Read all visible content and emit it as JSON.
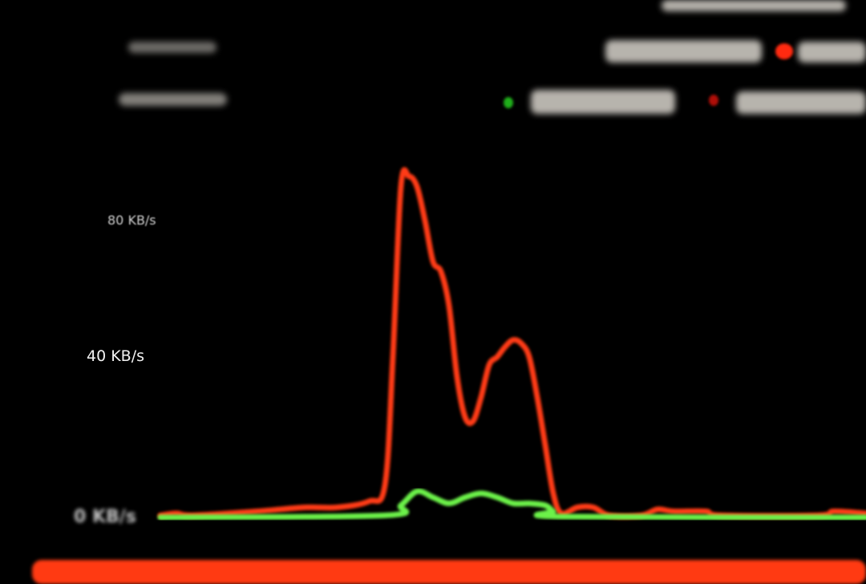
{
  "legend": {
    "colors": {
      "download": "#22c41e",
      "upload": "#e8160c"
    }
  },
  "chart_data": {
    "type": "line",
    "title": "",
    "xlabel": "",
    "ylabel": "",
    "y_tick_labels": [
      "0 KB/s",
      "40 KB/s",
      "80 KB/s"
    ],
    "y_ticks": [
      0,
      40,
      80
    ],
    "ylim": [
      0,
      95
    ],
    "xlim": [
      0,
      88
    ],
    "grid": false,
    "series": [
      {
        "color": "#ff3a12",
        "points": [
          [
            0,
            0.5
          ],
          [
            2,
            1
          ],
          [
            4,
            0.5
          ],
          [
            12,
            1.5
          ],
          [
            18,
            2.5
          ],
          [
            22,
            2.5
          ],
          [
            26,
            4
          ],
          [
            28,
            8
          ],
          [
            29,
            40
          ],
          [
            30,
            90
          ],
          [
            31,
            93
          ],
          [
            32,
            90
          ],
          [
            33,
            80
          ],
          [
            34,
            68
          ],
          [
            35,
            65
          ],
          [
            36,
            55
          ],
          [
            37,
            35
          ],
          [
            38,
            25
          ],
          [
            39,
            24
          ],
          [
            40,
            30
          ],
          [
            41,
            38
          ],
          [
            42,
            40
          ],
          [
            43,
            43
          ],
          [
            44,
            45
          ],
          [
            45,
            44
          ],
          [
            46,
            40
          ],
          [
            47,
            30
          ],
          [
            48,
            18
          ],
          [
            49,
            6
          ],
          [
            50,
            1
          ],
          [
            52,
            2.5
          ],
          [
            54,
            2.5
          ],
          [
            56,
            0.5
          ],
          [
            60,
            0.5
          ],
          [
            62,
            2
          ],
          [
            64,
            1.5
          ],
          [
            68,
            1.5
          ],
          [
            70,
            0.5
          ],
          [
            82,
            0.5
          ],
          [
            84,
            1.5
          ],
          [
            88,
            1
          ]
        ]
      },
      {
        "color": "#6cf24a",
        "points": [
          [
            0,
            0
          ],
          [
            28,
            0.5
          ],
          [
            30,
            3
          ],
          [
            32,
            6.5
          ],
          [
            34,
            5
          ],
          [
            36,
            3.5
          ],
          [
            38,
            5
          ],
          [
            40,
            6
          ],
          [
            42,
            5
          ],
          [
            44,
            3.5
          ],
          [
            46,
            3.5
          ],
          [
            48,
            3
          ],
          [
            49,
            1.5
          ],
          [
            50,
            0.2
          ],
          [
            88,
            0
          ]
        ]
      }
    ]
  }
}
